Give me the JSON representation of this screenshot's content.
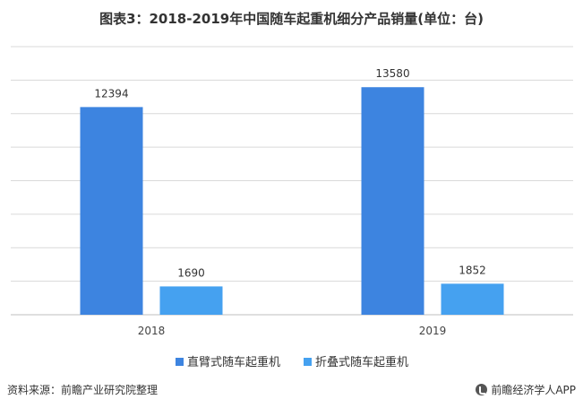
{
  "chart_data": {
    "type": "bar",
    "title": "图表3：2018-2019年中国随车起重机细分产品销量(单位：台)",
    "categories": [
      "2018",
      "2019"
    ],
    "series": [
      {
        "name": "直臂式随车起重机",
        "values": [
          12394,
          13580
        ],
        "color": "#3D84E0"
      },
      {
        "name": "折叠式随车起重机",
        "values": [
          1690,
          1852
        ],
        "color": "#45A1F0"
      }
    ],
    "ylim": [
      0,
      16000
    ],
    "grid": true,
    "legend": "bottom"
  },
  "footer": {
    "source": "资料来源：前瞻产业研究院整理",
    "brand": "前瞻经济学人APP"
  }
}
